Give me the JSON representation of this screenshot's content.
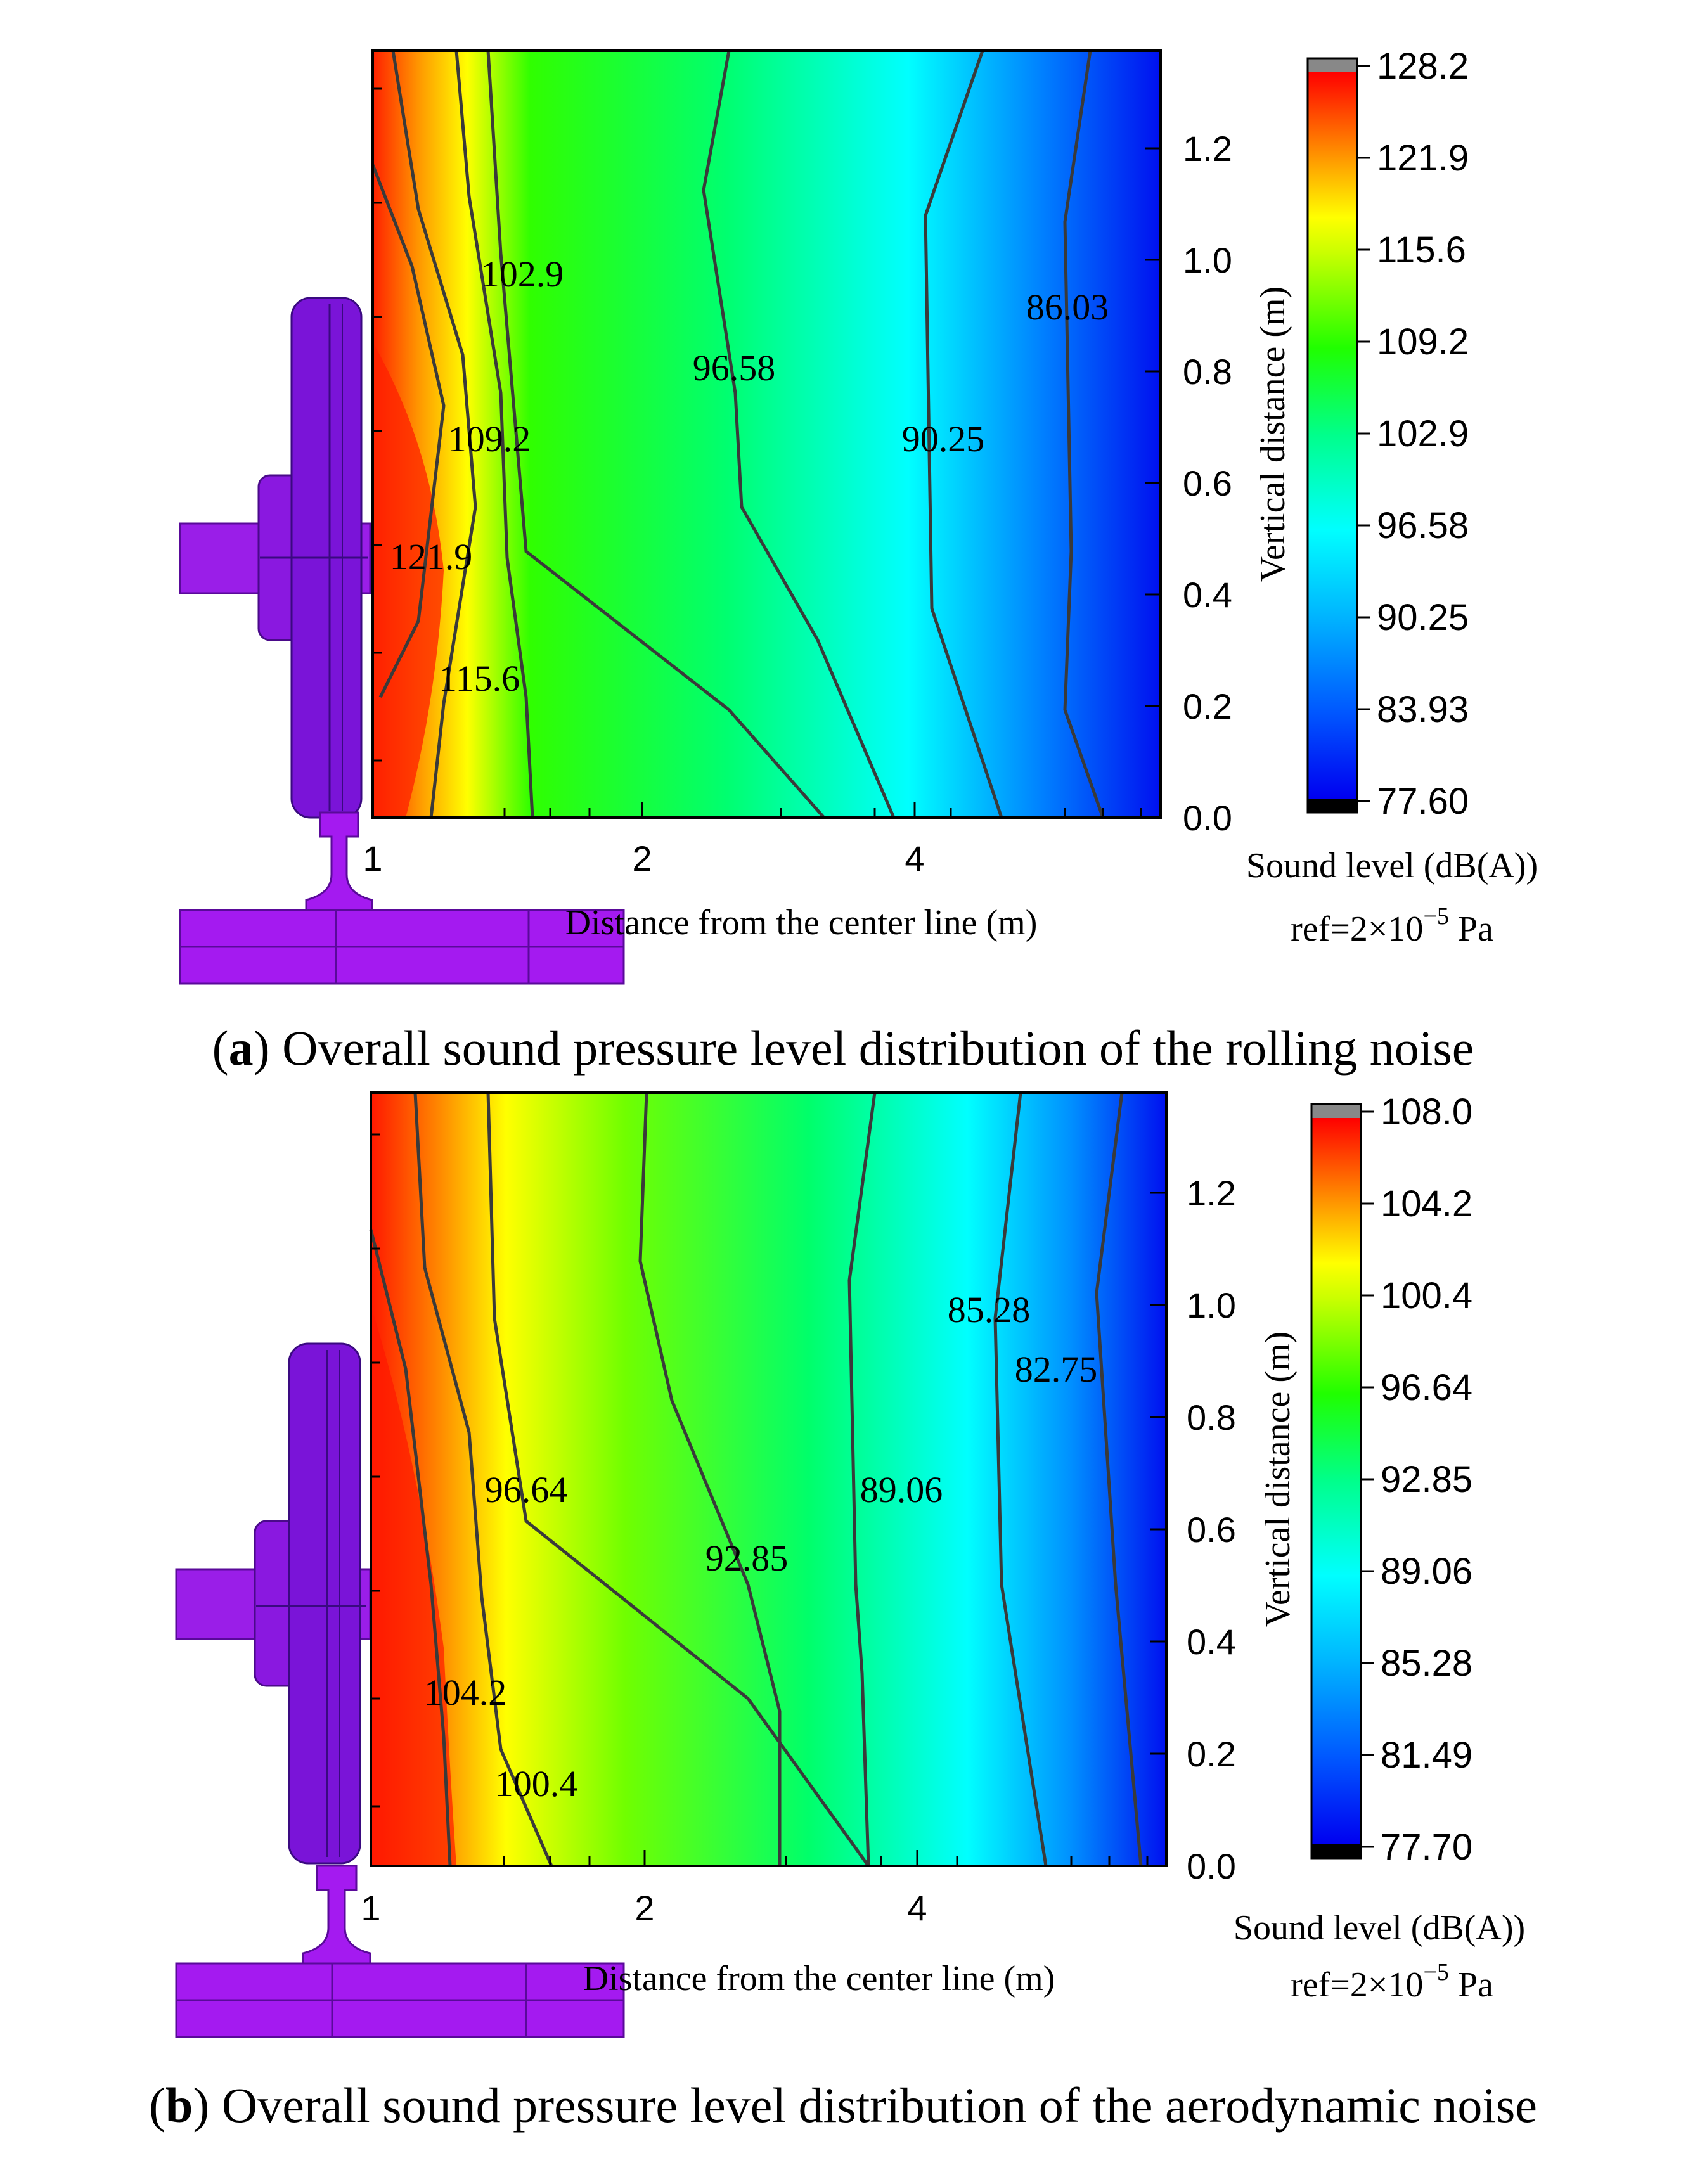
{
  "chart_data": [
    {
      "type": "contour",
      "id": "a",
      "caption_label": "a",
      "caption_text": ") Overall sound pressure level distribution of the rolling noise",
      "caption_open": "(",
      "xlabel": "Distance from the center line (m)",
      "ylabel": "Vertical distance (m)",
      "x_ticks": [
        "1",
        "2",
        "4"
      ],
      "y_ticks": [
        "0.0",
        "0.2",
        "0.4",
        "0.6",
        "0.8",
        "1.0",
        "1.2"
      ],
      "ylim": [
        0,
        1.38
      ],
      "colorbar": {
        "title": "Sound level (dB(A))",
        "ref_prefix": "ref=2×10",
        "ref_exp": "−5",
        "ref_suffix": " Pa",
        "ticks": [
          "128.2",
          "121.9",
          "115.6",
          "109.2",
          "102.9",
          "96.58",
          "90.25",
          "83.93",
          "77.60"
        ],
        "min": 77.6,
        "max": 128.2
      },
      "contour_labels": [
        "102.9",
        "96.58",
        "86.03",
        "109.2",
        "90.25",
        "121.9",
        "115.6"
      ]
    },
    {
      "type": "contour",
      "id": "b",
      "caption_label": "b",
      "caption_text": ") Overall sound pressure level distribution of the aerodynamic noise",
      "caption_open": "(",
      "xlabel": "Distance from the center line (m)",
      "ylabel": "Vertical distance (m)",
      "x_ticks": [
        "1",
        "2",
        "4"
      ],
      "y_ticks": [
        "0.0",
        "0.2",
        "0.4",
        "0.6",
        "0.8",
        "1.0",
        "1.2"
      ],
      "ylim": [
        0,
        1.38
      ],
      "colorbar": {
        "title": "Sound level (dB(A))",
        "ref_prefix": "ref=2×10",
        "ref_exp": "−5",
        "ref_suffix": " Pa",
        "ticks": [
          "108.0",
          "104.2",
          "100.4",
          "96.64",
          "92.85",
          "89.06",
          "85.28",
          "81.49",
          "77.70"
        ],
        "min": 77.7,
        "max": 108.0
      },
      "contour_labels": [
        "85.28",
        "82.75",
        "96.64",
        "89.06",
        "92.85",
        "104.2",
        "100.4"
      ]
    }
  ],
  "colors": {
    "wheel": "#7a14d8",
    "rail": "#a41af0",
    "contour_line": "#3a3a3a"
  }
}
